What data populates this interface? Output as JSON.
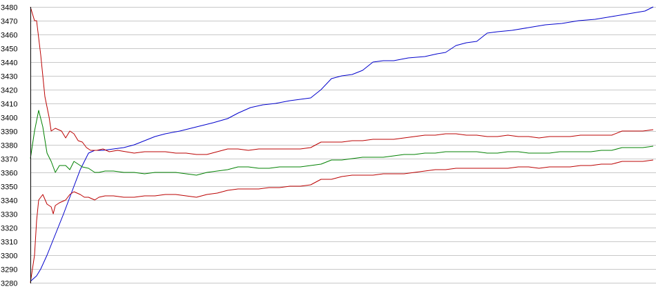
{
  "chart_data": {
    "type": "line",
    "title": "",
    "xlabel": "",
    "ylabel": "",
    "ylim": [
      3280,
      3480
    ],
    "y_ticks": [
      3480,
      3470,
      3460,
      3450,
      3440,
      3430,
      3420,
      3410,
      3400,
      3390,
      3380,
      3370,
      3360,
      3350,
      3340,
      3330,
      3320,
      3310,
      3300,
      3290,
      3280
    ],
    "grid": true,
    "legend": "none",
    "x_count": 301,
    "series": [
      {
        "color": "#0000cc",
        "points": [
          [
            0,
            3281
          ],
          [
            3,
            3285
          ],
          [
            5,
            3290
          ],
          [
            8,
            3300
          ],
          [
            12,
            3315
          ],
          [
            16,
            3330
          ],
          [
            20,
            3346
          ],
          [
            24,
            3362
          ],
          [
            28,
            3374
          ],
          [
            31,
            3376
          ],
          [
            35,
            3376
          ],
          [
            40,
            3377
          ],
          [
            45,
            3378
          ],
          [
            50,
            3380
          ],
          [
            55,
            3383
          ],
          [
            60,
            3386
          ],
          [
            65,
            3388
          ],
          [
            72,
            3390
          ],
          [
            80,
            3393
          ],
          [
            88,
            3396
          ],
          [
            95,
            3399
          ],
          [
            100,
            3403
          ],
          [
            106,
            3407
          ],
          [
            112,
            3409
          ],
          [
            118,
            3410
          ],
          [
            125,
            3412
          ],
          [
            130,
            3413
          ],
          [
            135,
            3414
          ],
          [
            140,
            3420
          ],
          [
            145,
            3428
          ],
          [
            150,
            3430
          ],
          [
            155,
            3431
          ],
          [
            160,
            3434
          ],
          [
            165,
            3440
          ],
          [
            170,
            3441
          ],
          [
            175,
            3441
          ],
          [
            182,
            3443
          ],
          [
            190,
            3444
          ],
          [
            196,
            3446
          ],
          [
            200,
            3447
          ],
          [
            205,
            3452
          ],
          [
            210,
            3454
          ],
          [
            215,
            3455
          ],
          [
            220,
            3461
          ],
          [
            225,
            3462
          ],
          [
            232,
            3463
          ],
          [
            240,
            3465
          ],
          [
            248,
            3467
          ],
          [
            256,
            3468
          ],
          [
            264,
            3470
          ],
          [
            272,
            3471
          ],
          [
            280,
            3473
          ],
          [
            288,
            3475
          ],
          [
            296,
            3477
          ],
          [
            300,
            3480
          ]
        ]
      },
      {
        "color": "#008000",
        "points": [
          [
            0,
            3370
          ],
          [
            2,
            3390
          ],
          [
            4,
            3405
          ],
          [
            6,
            3393
          ],
          [
            8,
            3374
          ],
          [
            10,
            3368
          ],
          [
            12,
            3360
          ],
          [
            14,
            3365
          ],
          [
            17,
            3365
          ],
          [
            19,
            3362
          ],
          [
            21,
            3368
          ],
          [
            23,
            3366
          ],
          [
            25,
            3364
          ],
          [
            28,
            3363
          ],
          [
            31,
            3360
          ],
          [
            33,
            3360
          ],
          [
            36,
            3361
          ],
          [
            40,
            3361
          ],
          [
            45,
            3360
          ],
          [
            50,
            3360
          ],
          [
            55,
            3359
          ],
          [
            60,
            3360
          ],
          [
            65,
            3360
          ],
          [
            70,
            3360
          ],
          [
            75,
            3359
          ],
          [
            80,
            3358
          ],
          [
            85,
            3360
          ],
          [
            90,
            3361
          ],
          [
            95,
            3362
          ],
          [
            100,
            3364
          ],
          [
            105,
            3364
          ],
          [
            110,
            3363
          ],
          [
            115,
            3363
          ],
          [
            120,
            3364
          ],
          [
            125,
            3364
          ],
          [
            130,
            3364
          ],
          [
            135,
            3365
          ],
          [
            140,
            3366
          ],
          [
            145,
            3369
          ],
          [
            150,
            3369
          ],
          [
            155,
            3370
          ],
          [
            160,
            3371
          ],
          [
            165,
            3371
          ],
          [
            170,
            3371
          ],
          [
            175,
            3372
          ],
          [
            180,
            3373
          ],
          [
            185,
            3373
          ],
          [
            190,
            3374
          ],
          [
            195,
            3374
          ],
          [
            200,
            3375
          ],
          [
            205,
            3375
          ],
          [
            210,
            3375
          ],
          [
            215,
            3375
          ],
          [
            220,
            3374
          ],
          [
            225,
            3374
          ],
          [
            230,
            3375
          ],
          [
            235,
            3375
          ],
          [
            240,
            3374
          ],
          [
            245,
            3374
          ],
          [
            250,
            3374
          ],
          [
            255,
            3375
          ],
          [
            260,
            3375
          ],
          [
            265,
            3375
          ],
          [
            270,
            3375
          ],
          [
            275,
            3376
          ],
          [
            280,
            3376
          ],
          [
            285,
            3378
          ],
          [
            290,
            3378
          ],
          [
            295,
            3378
          ],
          [
            300,
            3379
          ]
        ]
      },
      {
        "color": "#bb0000",
        "points": [
          [
            0,
            3480
          ],
          [
            2,
            3470
          ],
          [
            3,
            3470
          ],
          [
            5,
            3445
          ],
          [
            7,
            3415
          ],
          [
            9,
            3400
          ],
          [
            10,
            3390
          ],
          [
            12,
            3392
          ],
          [
            15,
            3390
          ],
          [
            17,
            3385
          ],
          [
            19,
            3390
          ],
          [
            21,
            3388
          ],
          [
            23,
            3383
          ],
          [
            25,
            3382
          ],
          [
            27,
            3378
          ],
          [
            29,
            3376
          ],
          [
            32,
            3376
          ],
          [
            35,
            3377
          ],
          [
            38,
            3375
          ],
          [
            42,
            3376
          ],
          [
            46,
            3375
          ],
          [
            50,
            3374
          ],
          [
            55,
            3375
          ],
          [
            60,
            3375
          ],
          [
            65,
            3375
          ],
          [
            70,
            3374
          ],
          [
            75,
            3374
          ],
          [
            80,
            3373
          ],
          [
            85,
            3373
          ],
          [
            90,
            3375
          ],
          [
            95,
            3377
          ],
          [
            100,
            3377
          ],
          [
            105,
            3376
          ],
          [
            110,
            3377
          ],
          [
            115,
            3377
          ],
          [
            120,
            3377
          ],
          [
            125,
            3377
          ],
          [
            130,
            3377
          ],
          [
            135,
            3378
          ],
          [
            140,
            3382
          ],
          [
            145,
            3382
          ],
          [
            150,
            3382
          ],
          [
            155,
            3383
          ],
          [
            160,
            3383
          ],
          [
            165,
            3384
          ],
          [
            170,
            3384
          ],
          [
            175,
            3384
          ],
          [
            180,
            3385
          ],
          [
            185,
            3386
          ],
          [
            190,
            3387
          ],
          [
            195,
            3387
          ],
          [
            200,
            3388
          ],
          [
            205,
            3388
          ],
          [
            210,
            3387
          ],
          [
            215,
            3387
          ],
          [
            220,
            3386
          ],
          [
            225,
            3386
          ],
          [
            230,
            3387
          ],
          [
            235,
            3386
          ],
          [
            240,
            3386
          ],
          [
            245,
            3385
          ],
          [
            250,
            3386
          ],
          [
            255,
            3386
          ],
          [
            260,
            3386
          ],
          [
            265,
            3387
          ],
          [
            270,
            3387
          ],
          [
            275,
            3387
          ],
          [
            280,
            3387
          ],
          [
            285,
            3390
          ],
          [
            290,
            3390
          ],
          [
            295,
            3390
          ],
          [
            300,
            3391
          ]
        ]
      },
      {
        "color": "#bb0000",
        "points": [
          [
            0,
            3280
          ],
          [
            2,
            3300
          ],
          [
            3,
            3325
          ],
          [
            4,
            3340
          ],
          [
            6,
            3344
          ],
          [
            8,
            3337
          ],
          [
            10,
            3335
          ],
          [
            11,
            3330
          ],
          [
            12,
            3336
          ],
          [
            14,
            3338
          ],
          [
            17,
            3340
          ],
          [
            19,
            3344
          ],
          [
            21,
            3346
          ],
          [
            24,
            3344
          ],
          [
            26,
            3342
          ],
          [
            28,
            3342
          ],
          [
            31,
            3340
          ],
          [
            33,
            3342
          ],
          [
            36,
            3343
          ],
          [
            40,
            3343
          ],
          [
            45,
            3342
          ],
          [
            50,
            3342
          ],
          [
            55,
            3343
          ],
          [
            60,
            3343
          ],
          [
            65,
            3344
          ],
          [
            70,
            3344
          ],
          [
            75,
            3343
          ],
          [
            80,
            3342
          ],
          [
            85,
            3344
          ],
          [
            90,
            3345
          ],
          [
            95,
            3347
          ],
          [
            100,
            3348
          ],
          [
            105,
            3348
          ],
          [
            110,
            3348
          ],
          [
            115,
            3349
          ],
          [
            120,
            3349
          ],
          [
            125,
            3350
          ],
          [
            130,
            3350
          ],
          [
            135,
            3351
          ],
          [
            140,
            3355
          ],
          [
            145,
            3355
          ],
          [
            150,
            3357
          ],
          [
            155,
            3358
          ],
          [
            160,
            3358
          ],
          [
            165,
            3358
          ],
          [
            170,
            3359
          ],
          [
            175,
            3359
          ],
          [
            180,
            3359
          ],
          [
            185,
            3360
          ],
          [
            190,
            3361
          ],
          [
            195,
            3362
          ],
          [
            200,
            3362
          ],
          [
            205,
            3363
          ],
          [
            210,
            3363
          ],
          [
            215,
            3363
          ],
          [
            220,
            3363
          ],
          [
            225,
            3363
          ],
          [
            230,
            3363
          ],
          [
            235,
            3364
          ],
          [
            240,
            3364
          ],
          [
            245,
            3363
          ],
          [
            250,
            3364
          ],
          [
            255,
            3364
          ],
          [
            260,
            3364
          ],
          [
            265,
            3365
          ],
          [
            270,
            3365
          ],
          [
            275,
            3366
          ],
          [
            280,
            3366
          ],
          [
            285,
            3368
          ],
          [
            290,
            3368
          ],
          [
            295,
            3368
          ],
          [
            300,
            3369
          ]
        ]
      }
    ]
  }
}
